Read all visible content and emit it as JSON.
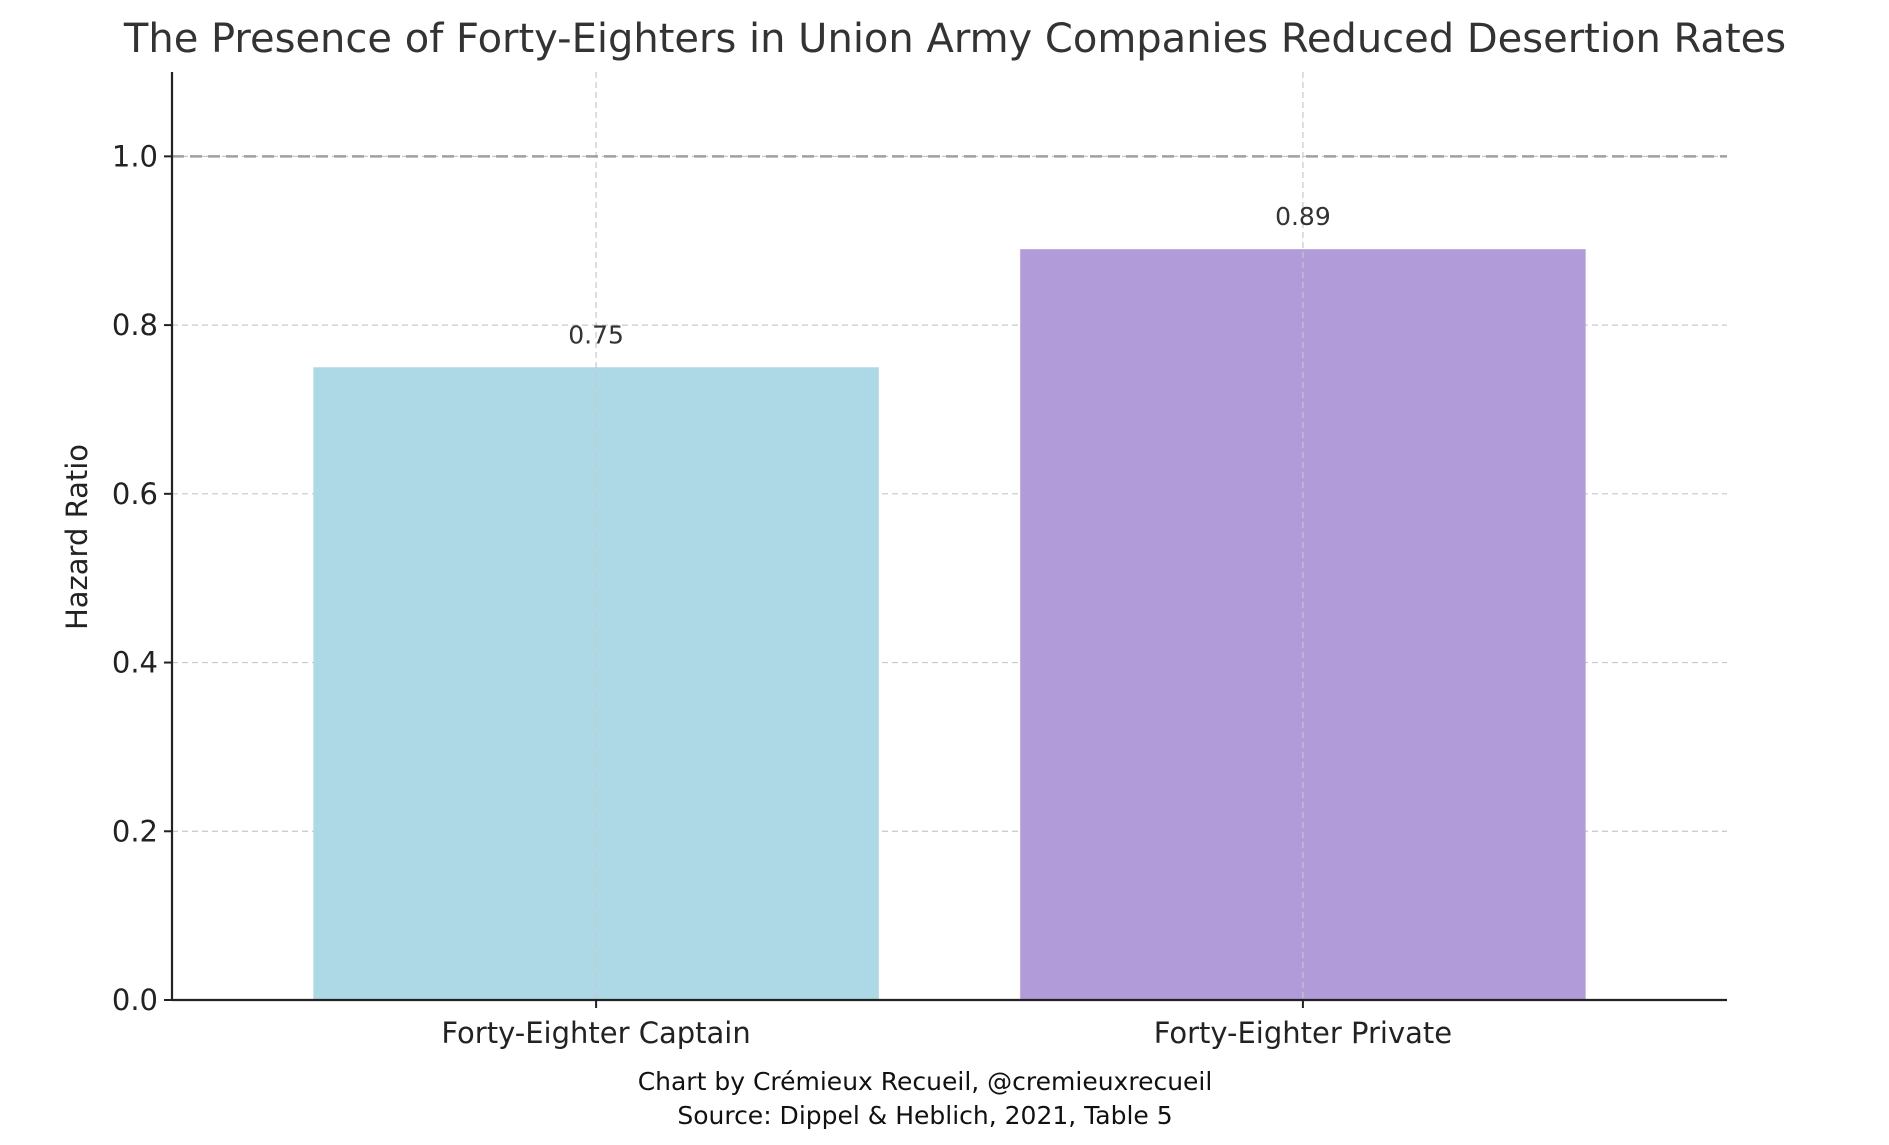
{
  "chart_data": {
    "type": "bar",
    "title": "The Presence of Forty-Eighters in Union Army Companies Reduced Desertion Rates",
    "xlabel": "",
    "ylabel": "Hazard Ratio",
    "categories": [
      "Forty-Eighter Captain",
      "Forty-Eighter Private"
    ],
    "values": [
      0.75,
      0.89
    ],
    "value_labels": [
      "0.75",
      "0.89"
    ],
    "colors": [
      "#add8e6",
      "#b19cd9"
    ],
    "ylim": [
      0,
      1.1
    ],
    "yticks": [
      0.0,
      0.2,
      0.4,
      0.6,
      0.8,
      1.0
    ],
    "ytick_labels": [
      "0.0",
      "0.2",
      "0.4",
      "0.6",
      "0.8",
      "1.0"
    ],
    "reference_line": {
      "y": 1.0,
      "style": "dashed",
      "color": "#a0a0a0"
    },
    "grid": true,
    "grid_color": "#c8c8c8"
  },
  "footer": {
    "credit": "Chart by Crémieux Recueil, @cremieuxrecueil",
    "source": "Source: Dippel & Heblich, 2021, Table 5"
  }
}
